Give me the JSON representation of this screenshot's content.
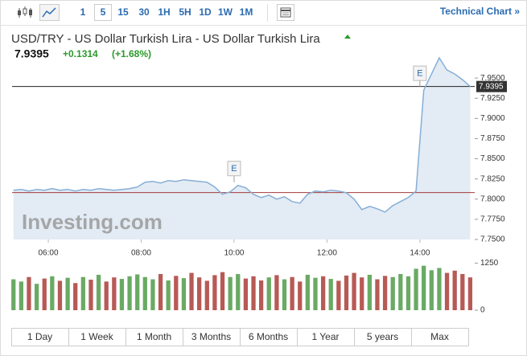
{
  "toolbar": {
    "intervals": [
      "1",
      "5",
      "15",
      "30",
      "1H",
      "5H",
      "1D",
      "1W",
      "1M"
    ],
    "link": "Technical Chart »"
  },
  "header": {
    "title": "USD/TRY - US Dollar Turkish Lira - US Dollar Turkish Lira",
    "price": "7.9395",
    "change": "+0.1314",
    "change_pct": "(+1.68%)"
  },
  "watermark": "Investing.com",
  "chart_data": [
    {
      "type": "line",
      "x": [
        5.25,
        5.417,
        5.583,
        5.75,
        5.917,
        6.083,
        6.25,
        6.417,
        6.583,
        6.75,
        6.917,
        7.083,
        7.25,
        7.417,
        7.583,
        7.75,
        7.917,
        8.083,
        8.25,
        8.417,
        8.583,
        8.75,
        8.917,
        9.083,
        9.25,
        9.417,
        9.583,
        9.75,
        9.917,
        10.083,
        10.25,
        10.417,
        10.583,
        10.75,
        10.917,
        11.083,
        11.25,
        11.417,
        11.583,
        11.75,
        11.917,
        12.083,
        12.25,
        12.417,
        12.583,
        12.75,
        12.917,
        13.083,
        13.25,
        13.417,
        13.583,
        13.75,
        13.917,
        14.083,
        14.25,
        14.417,
        14.583,
        14.75,
        14.917,
        15.083
      ],
      "xlim": [
        5.22,
        15.18
      ],
      "xticks": [
        {
          "value": 6,
          "label": "06:00"
        },
        {
          "value": 8,
          "label": "08:00"
        },
        {
          "value": 10,
          "label": "10:00"
        },
        {
          "value": 12,
          "label": "12:00"
        },
        {
          "value": 14,
          "label": "14:00"
        }
      ],
      "ylim": [
        7.75,
        7.982
      ],
      "yticks": [
        {
          "value": 7.75,
          "label": "7.7500"
        },
        {
          "value": 7.775,
          "label": "7.7750"
        },
        {
          "value": 7.8,
          "label": "7.8000"
        },
        {
          "value": 7.825,
          "label": "7.8250"
        },
        {
          "value": 7.85,
          "label": "7.8500"
        },
        {
          "value": 7.875,
          "label": "7.8750"
        },
        {
          "value": 7.9,
          "label": "7.9000"
        },
        {
          "value": 7.925,
          "label": "7.9250"
        },
        {
          "value": 7.95,
          "label": "7.9500"
        }
      ],
      "series": [
        {
          "color": "#86aed6",
          "values": [
            7.811,
            7.812,
            7.81,
            7.812,
            7.811,
            7.813,
            7.811,
            7.812,
            7.81,
            7.812,
            7.811,
            7.813,
            7.812,
            7.811,
            7.812,
            7.813,
            7.815,
            7.821,
            7.822,
            7.82,
            7.823,
            7.822,
            7.824,
            7.823,
            7.822,
            7.821,
            7.815,
            7.806,
            7.809,
            7.817,
            7.814,
            7.806,
            7.802,
            7.805,
            7.8,
            7.803,
            7.797,
            7.795,
            7.806,
            7.81,
            7.809,
            7.811,
            7.81,
            7.808,
            7.8,
            7.787,
            7.791,
            7.788,
            7.784,
            7.792,
            7.797,
            7.802,
            7.81,
            7.935,
            7.955,
            7.975,
            7.96,
            7.955,
            7.948,
            7.9395
          ]
        }
      ],
      "area_color": "#e3ebf4",
      "last_price": 7.9395,
      "reference_line": 7.8081,
      "annotations": [
        {
          "label": "E",
          "x": 10
        },
        {
          "label": "E",
          "x": 14
        }
      ],
      "grid": false
    },
    {
      "type": "bar",
      "ylim": [
        0,
        1450
      ],
      "yticks": [
        0,
        1250
      ],
      "up_color": "#6aaa64",
      "down_color": "#b75a55",
      "values": [
        820,
        760,
        880,
        700,
        840,
        900,
        780,
        860,
        720,
        880,
        810,
        940,
        760,
        870,
        830,
        900,
        950,
        880,
        820,
        960,
        790,
        910,
        850,
        990,
        870,
        780,
        930,
        1010,
        880,
        960,
        840,
        900,
        790,
        870,
        930,
        820,
        880,
        760,
        940,
        860,
        900,
        830,
        780,
        920,
        990,
        870,
        940,
        820,
        910,
        880,
        960,
        900,
        1100,
        1180,
        1060,
        1120,
        990,
        1050,
        960,
        870
      ]
    }
  ],
  "ranges": [
    "1 Day",
    "1 Week",
    "1 Month",
    "3 Months",
    "6 Months",
    "1 Year",
    "5 years",
    "Max"
  ]
}
